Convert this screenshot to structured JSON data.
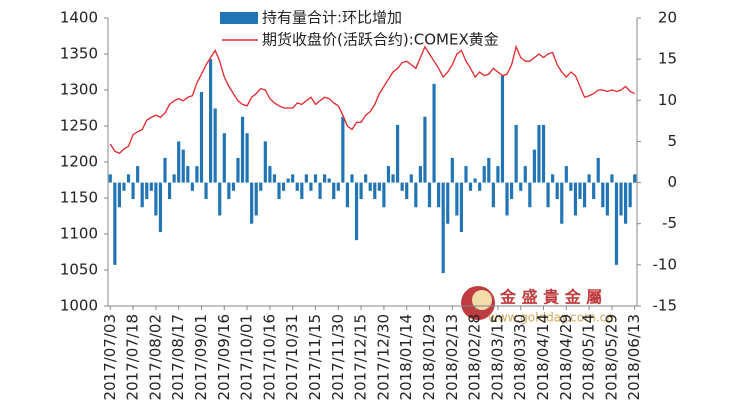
{
  "chart_data": {
    "type": "combo",
    "categories": [
      "2017/07/03",
      null,
      null,
      null,
      null,
      "2017/07/18",
      null,
      null,
      null,
      null,
      "2017/08/02",
      null,
      null,
      null,
      null,
      "2017/08/17",
      null,
      null,
      null,
      null,
      "2017/09/01",
      null,
      null,
      null,
      null,
      "2017/09/16",
      null,
      null,
      null,
      null,
      "2017/10/01",
      null,
      null,
      null,
      null,
      "2017/10/16",
      null,
      null,
      null,
      null,
      "2017/10/31",
      null,
      null,
      null,
      null,
      "2017/11/15",
      null,
      null,
      null,
      null,
      "2017/11/30",
      null,
      null,
      null,
      null,
      "2017/12/15",
      null,
      null,
      null,
      null,
      "2017/12/30",
      null,
      null,
      null,
      null,
      "2018/01/14",
      null,
      null,
      null,
      null,
      "2018/01/29",
      null,
      null,
      null,
      null,
      "2018/02/13",
      null,
      null,
      null,
      null,
      "2018/02/28",
      null,
      null,
      null,
      null,
      "2018/03/15",
      null,
      null,
      null,
      null,
      "2018/03/30",
      null,
      null,
      null,
      null,
      "2018/04/14",
      null,
      null,
      null,
      null,
      "2018/04/29",
      null,
      null,
      null,
      null,
      "2018/05/14",
      null,
      null,
      null,
      null,
      "2018/05/29",
      null,
      null,
      null,
      null,
      "2018/06/13"
    ],
    "series": [
      {
        "name": "持有量合计:环比增加",
        "type": "bar",
        "axis": "y2",
        "color": "#2275b5",
        "values": [
          1,
          -10,
          -3,
          -1,
          1,
          -2,
          2,
          -3,
          -2,
          -1,
          -4,
          -6,
          3,
          -2,
          1,
          5,
          4,
          2,
          -1,
          2,
          11,
          -2,
          15,
          9,
          -4,
          6,
          -2,
          -1,
          3,
          8,
          6,
          -5,
          -4,
          -1,
          5,
          2,
          1,
          -2,
          -1,
          0.5,
          1,
          -1,
          -2,
          1,
          -1,
          1,
          -2,
          1,
          0.5,
          -2,
          -1,
          8,
          -3,
          1,
          -7,
          -2,
          1,
          -1,
          -2,
          -1,
          -3,
          2,
          1,
          7,
          -1,
          -2,
          1,
          -3,
          2,
          8,
          -3,
          12,
          -3,
          -11,
          -5,
          3,
          -4,
          -6,
          2,
          -1,
          0.5,
          -1,
          2,
          3,
          -3,
          2,
          13,
          -4,
          -2,
          7,
          -1,
          2,
          -3,
          4,
          7,
          7,
          -3,
          1,
          -2,
          -5,
          2,
          -1,
          -4,
          -2,
          -3,
          1,
          -2,
          3,
          -3,
          -4,
          1,
          -10,
          -4,
          -5,
          -3,
          1
        ]
      },
      {
        "name": "期货收盘价(活跃合约):COMEX黄金",
        "type": "line",
        "color": "#e3262b",
        "values": [
          1225,
          1215,
          1212,
          1218,
          1222,
          1238,
          1242,
          1245,
          1258,
          1262,
          1265,
          1262,
          1268,
          1280,
          1285,
          1288,
          1285,
          1290,
          1292,
          1310,
          1322,
          1335,
          1345,
          1355,
          1340,
          1318,
          1305,
          1295,
          1285,
          1280,
          1278,
          1290,
          1295,
          1302,
          1300,
          1288,
          1282,
          1278,
          1275,
          1275,
          1275,
          1282,
          1280,
          1285,
          1290,
          1280,
          1285,
          1290,
          1288,
          1282,
          1278,
          1265,
          1250,
          1245,
          1255,
          1255,
          1265,
          1270,
          1280,
          1295,
          1305,
          1315,
          1325,
          1330,
          1338,
          1340,
          1335,
          1330,
          1345,
          1360,
          1350,
          1340,
          1330,
          1318,
          1325,
          1335,
          1350,
          1355,
          1340,
          1330,
          1318,
          1325,
          1320,
          1322,
          1330,
          1325,
          1320,
          1322,
          1335,
          1360,
          1345,
          1340,
          1340,
          1345,
          1350,
          1345,
          1350,
          1352,
          1335,
          1325,
          1318,
          1325,
          1320,
          1305,
          1290,
          1292,
          1295,
          1300,
          1300,
          1298,
          1300,
          1298,
          1300,
          1305,
          1298,
          1295
        ]
      }
    ],
    "ylim": [
      1000,
      1400
    ],
    "yticks": [
      1000,
      1050,
      1100,
      1150,
      1200,
      1250,
      1300,
      1350,
      1400
    ],
    "y2lim": [
      -15,
      20
    ],
    "y2ticks": [
      -15,
      -10,
      -5,
      0,
      5,
      10,
      15,
      20
    ],
    "watermark": {
      "brand": "金 盛 貴 金 屬",
      "url": "www.goldday.com.cn"
    }
  }
}
